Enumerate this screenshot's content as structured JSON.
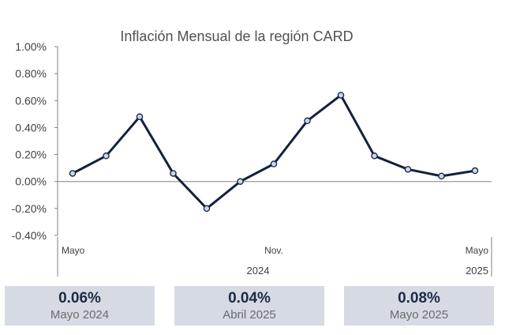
{
  "chart_data": {
    "type": "line",
    "title": "Inflación Mensual de la región CARD",
    "x": [
      "2024-05",
      "2024-06",
      "2024-07",
      "2024-08",
      "2024-09",
      "2024-10",
      "2024-11",
      "2024-12",
      "2025-01",
      "2025-02",
      "2025-03",
      "2025-04",
      "2025-05"
    ],
    "series": [
      {
        "values": [
          0.06,
          0.19,
          0.48,
          0.06,
          -0.2,
          0.0,
          0.13,
          0.45,
          0.64,
          0.19,
          0.09,
          0.04,
          0.08
        ]
      }
    ],
    "ylim": [
      -0.4,
      1.0
    ],
    "yticks": [
      1.0,
      0.8,
      0.6,
      0.4,
      0.2,
      0.0,
      -0.2,
      -0.4
    ],
    "ytick_labels": [
      "1.00%",
      "0.80%",
      "0.60%",
      "0.40%",
      "0.20%",
      "0.00%",
      "-0.20%",
      "-0.40%"
    ],
    "xtick_labels": [
      {
        "index": 0,
        "label": "Mayo"
      },
      {
        "index": 6,
        "label": "Nov."
      },
      {
        "index": 12,
        "label": "Mayo"
      }
    ],
    "year_labels": [
      {
        "index": 6,
        "label": "2024"
      },
      {
        "index": 12,
        "label": "2025"
      }
    ],
    "grid": false,
    "legend": "none",
    "line_color": "#13213d",
    "marker_fill": "#c9d6ea"
  },
  "cards": [
    {
      "value": "0.06%",
      "label": "Mayo 2024"
    },
    {
      "value": "0.04%",
      "label": "Abril 2025"
    },
    {
      "value": "0.08%",
      "label": "Mayo 2025"
    }
  ]
}
